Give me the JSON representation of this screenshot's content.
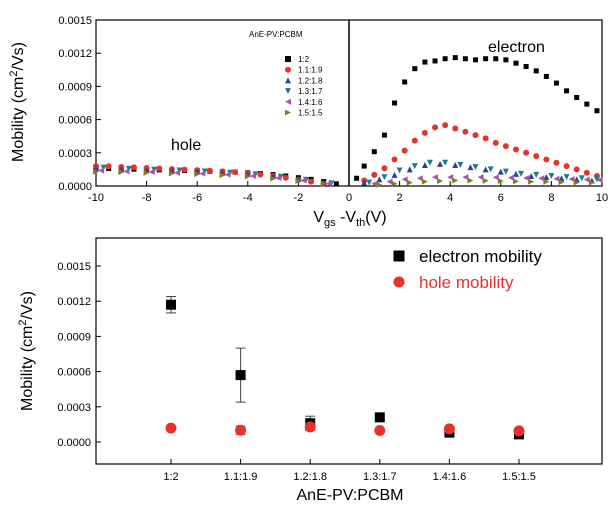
{
  "chart_data": [
    {
      "type": "scatter",
      "title": "",
      "xlabel": "V_gs -V_th(V)",
      "ylabel": "Mobility (cm2/Vs)",
      "xlim": [
        -10,
        10
      ],
      "ylim": [
        0,
        0.0015
      ],
      "xticks": [
        "-10",
        "-8",
        "-6",
        "-4",
        "-2",
        "0",
        "2",
        "4",
        "6",
        "8",
        "10"
      ],
      "yticks": [
        "0.0000",
        "0.0003",
        "0.0006",
        "0.0009",
        "0.0012",
        "0.0015"
      ],
      "legend_title": "AnE-PV:PCBM",
      "legend_placement": "top-center",
      "annotations": {
        "hole": "hole",
        "electron": "electron"
      },
      "vline_x": 0,
      "series": [
        {
          "name": "1:2",
          "marker": "square",
          "color": "#000000",
          "hole_x": [
            -10,
            -9.5,
            -9,
            -8.5,
            -8,
            -7.5,
            -7,
            -6.5,
            -6,
            -5.5,
            -5,
            -4.5,
            -4,
            -3.5,
            -3,
            -2.5,
            -2,
            -1.5,
            -1,
            -0.5
          ],
          "hole_y": [
            0.00016,
            0.000158,
            0.000155,
            0.000152,
            0.000149,
            0.000146,
            0.000143,
            0.00014,
            0.000137,
            0.000133,
            0.00013,
            0.000125,
            0.00012,
            0.000112,
            0.000103,
            9e-05,
            7.5e-05,
            6e-05,
            4e-05,
            2e-05
          ],
          "electron_x": [
            0.3,
            0.6,
            1,
            1.4,
            1.8,
            2.2,
            2.6,
            3,
            3.4,
            3.8,
            4.2,
            4.6,
            5,
            5.4,
            5.8,
            6.2,
            6.6,
            7,
            7.4,
            7.8,
            8.2,
            8.6,
            9,
            9.4,
            9.8
          ],
          "electron_y": [
            7e-05,
            0.00018,
            0.00031,
            0.00046,
            0.00075,
            0.00094,
            0.00106,
            0.00112,
            0.00113,
            0.00115,
            0.00116,
            0.00115,
            0.00114,
            0.00115,
            0.00115,
            0.00114,
            0.00111,
            0.00108,
            0.00104,
            0.00099,
            0.00093,
            0.00086,
            0.0008,
            0.00074,
            0.00068
          ]
        },
        {
          "name": "1.1:1.9",
          "marker": "circle",
          "color": "#e8312a",
          "hole_x": [
            -10,
            -9.5,
            -9,
            -8.5,
            -8,
            -7.5,
            -7,
            -6.5,
            -6,
            -5.5,
            -5,
            -4.5,
            -4,
            -3.5,
            -3,
            -2.5,
            -2,
            -1.5,
            -1
          ],
          "hole_y": [
            0.00018,
            0.000177,
            0.000172,
            0.000168,
            0.000163,
            0.000158,
            0.000153,
            0.000148,
            0.000143,
            0.000138,
            0.000132,
            0.000124,
            0.000115,
            0.000104,
            9e-05,
            7.5e-05,
            5.8e-05,
            4e-05,
            2.2e-05
          ],
          "electron_x": [
            0.6,
            1,
            1.4,
            1.8,
            2.2,
            2.6,
            3,
            3.4,
            3.8,
            4.2,
            4.6,
            5,
            5.4,
            5.8,
            6.2,
            6.6,
            7,
            7.4,
            7.8,
            8.2,
            8.6,
            9,
            9.4,
            9.8
          ],
          "electron_y": [
            5e-05,
            0.0001,
            0.00016,
            0.00024,
            0.00032,
            0.00041,
            0.00048,
            0.00053,
            0.00055,
            0.00052,
            0.00049,
            0.00046,
            0.00043,
            0.00039,
            0.00036,
            0.00033,
            0.0003,
            0.00027,
            0.00024,
            0.00021,
            0.00018,
            0.00015,
            0.00012,
            9e-05
          ]
        },
        {
          "name": "1.2:1.8",
          "marker": "triangle-up",
          "color": "#2f3f9f",
          "hole_x": [
            -10,
            -9,
            -8,
            -7,
            -6,
            -5,
            -4,
            -3,
            -2,
            -1
          ],
          "hole_y": [
            0.00016,
            0.000152,
            0.000145,
            0.000138,
            0.00013,
            0.00012,
            0.000108,
            8.8e-05,
            6.2e-05,
            3e-05
          ],
          "electron_x": [
            0.6,
            1.2,
            1.8,
            2.4,
            3,
            3.6,
            4.2,
            4.8,
            5.4,
            6,
            6.6,
            7.2,
            7.8,
            8.4,
            9,
            9.6
          ],
          "electron_y": [
            3e-05,
            6e-05,
            0.0001,
            0.00015,
            0.00019,
            0.0002,
            0.00019,
            0.00017,
            0.00015,
            0.00013,
            0.00011,
            9e-05,
            8e-05,
            7e-05,
            6e-05,
            5e-05
          ]
        },
        {
          "name": "1.3:1.7",
          "marker": "triangle-down",
          "color": "#1a7f84",
          "hole_x": [
            -9.7,
            -8.7,
            -7.7,
            -6.7,
            -5.7,
            -4.7,
            -3.7,
            -2.7,
            -1.7,
            -0.7
          ],
          "hole_y": [
            0.000165,
            0.000155,
            0.000147,
            0.00014,
            0.000131,
            0.00012,
            0.000105,
            8.3e-05,
            5.5e-05,
            2.5e-05
          ],
          "electron_x": [
            0.8,
            1.4,
            2,
            2.6,
            3.2,
            3.8,
            4.4,
            5,
            5.6,
            6.2,
            6.8,
            7.4,
            8,
            8.6,
            9.2,
            9.8
          ],
          "electron_y": [
            3e-05,
            8e-05,
            0.00014,
            0.00018,
            0.00021,
            0.00021,
            0.00019,
            0.00017,
            0.00015,
            0.00013,
            0.00011,
            0.0001,
            9e-05,
            8e-05,
            7e-05,
            6e-05
          ]
        },
        {
          "name": "1.4:1.6",
          "marker": "triangle-left",
          "color": "#b04fb0",
          "hole_x": [
            -9.8,
            -8.8,
            -7.8,
            -6.8,
            -5.8,
            -4.8,
            -3.8,
            -2.8,
            -1.8,
            -0.8
          ],
          "hole_y": [
            0.00014,
            0.000133,
            0.000126,
            0.00012,
            0.000112,
            0.000103,
            9e-05,
            7.2e-05,
            5e-05,
            2.2e-05
          ],
          "electron_x": [
            1,
            1.6,
            2.2,
            2.8,
            3.4,
            4,
            4.6,
            5.2,
            5.8,
            6.4,
            7,
            7.6,
            8.2,
            8.8,
            9.4,
            9.9
          ],
          "electron_y": [
            2e-05,
            4e-05,
            6e-05,
            7e-05,
            8e-05,
            8e-05,
            8e-05,
            8e-05,
            7.8e-05,
            7.5e-05,
            7.2e-05,
            7e-05,
            6.6e-05,
            6.2e-05,
            5.8e-05,
            5.5e-05
          ]
        },
        {
          "name": "1.5:1.5",
          "marker": "triangle-right",
          "color": "#7f7f22",
          "hole_x": [
            -10,
            -9,
            -8,
            -7,
            -6,
            -5,
            -4,
            -3,
            -2,
            -1
          ],
          "hole_y": [
            0.00013,
            0.000125,
            0.00012,
            0.000114,
            0.000107,
            9.8e-05,
            8.6e-05,
            6.8e-05,
            4.6e-05,
            2e-05
          ],
          "electron_x": [
            1.2,
            1.8,
            2.4,
            3,
            3.6,
            4.2,
            4.8,
            5.4,
            6,
            6.6,
            7.2,
            7.8,
            8.4,
            9,
            9.6
          ],
          "electron_y": [
            1e-05,
            2e-05,
            3e-05,
            4e-05,
            4.5e-05,
            5e-05,
            5e-05,
            4.8e-05,
            4.5e-05,
            4.2e-05,
            4e-05,
            3.8e-05,
            3.5e-05,
            3.2e-05,
            3e-05
          ]
        }
      ]
    },
    {
      "type": "scatter",
      "title": "",
      "xlabel": "AnE-PV:PCBM",
      "ylabel": "Mobility (cm2/Vs)",
      "ylim": [
        0,
        0.0015
      ],
      "yticks": [
        "0.0000",
        "0.0003",
        "0.0006",
        "0.0009",
        "0.0012",
        "0.0015"
      ],
      "categories": [
        "1:2",
        "1.1:1.9",
        "1.2:1.8",
        "1.3:1.7",
        "1.4:1.6",
        "1.5:1.5"
      ],
      "legend_placement": "top-right",
      "series": [
        {
          "name": "electron mobility",
          "marker": "square",
          "color": "#000000",
          "values": [
            0.00117,
            0.00057,
            0.00016,
            0.00021,
            8e-05,
            6.5e-05
          ],
          "errors": [
            7e-05,
            0.00023,
            6e-05,
            0,
            0,
            0
          ]
        },
        {
          "name": "hole mobility",
          "marker": "circle",
          "color": "#e8312a",
          "values": [
            0.000118,
            0.0001,
            0.000128,
            9.8e-05,
            0.000112,
            9.5e-05
          ],
          "errors": [
            0,
            3.5e-05,
            3e-05,
            0,
            0,
            0
          ]
        }
      ]
    }
  ]
}
